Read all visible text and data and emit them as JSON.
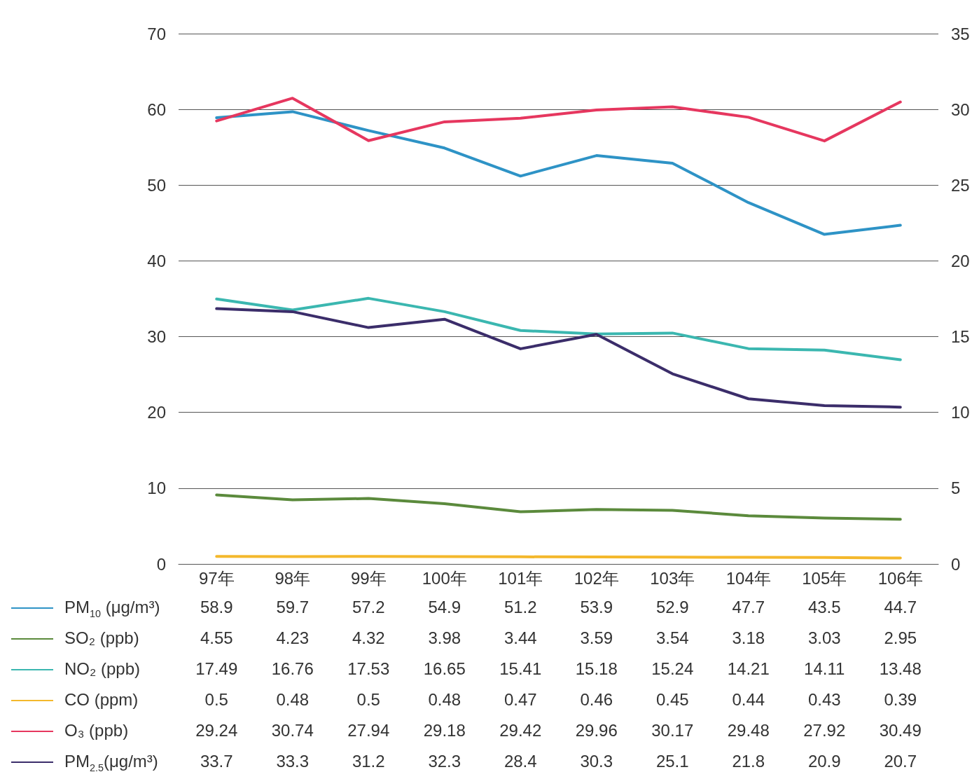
{
  "chart_data": {
    "type": "line",
    "categories": [
      "97年",
      "98年",
      "99年",
      "100年",
      "101年",
      "102年",
      "103年",
      "104年",
      "105年",
      "106年"
    ],
    "series": [
      {
        "name": "PM$_{10}$ (μg/m³)",
        "color": "#2e93c6",
        "values": [
          58.9,
          59.7,
          57.2,
          54.9,
          51.2,
          53.9,
          52.9,
          47.7,
          43.5,
          44.7
        ]
      },
      {
        "name": "SO₂ (ppb)",
        "color": "#5b8a3c",
        "axis": "y2",
        "values": [
          4.55,
          4.23,
          4.32,
          3.98,
          3.44,
          3.59,
          3.54,
          3.18,
          3.03,
          2.95
        ]
      },
      {
        "name": "NO₂ (ppb)",
        "color": "#3bb7b0",
        "axis": "y2",
        "values": [
          17.49,
          16.76,
          17.53,
          16.65,
          15.41,
          15.18,
          15.24,
          14.21,
          14.11,
          13.48
        ]
      },
      {
        "name": "CO (ppm)",
        "color": "#f4b82c",
        "axis": "y2",
        "values": [
          0.5,
          0.48,
          0.5,
          0.48,
          0.47,
          0.46,
          0.45,
          0.44,
          0.43,
          0.39
        ]
      },
      {
        "name": "O₃ (ppb)",
        "color": "#e6375f",
        "axis": "y2",
        "values": [
          29.24,
          30.74,
          27.94,
          29.18,
          29.42,
          29.96,
          30.17,
          29.48,
          27.92,
          30.49
        ]
      },
      {
        "name": "PM$_{2.5}$(μg/m³)",
        "color": "#3b2d6a",
        "values": [
          33.7,
          33.3,
          31.2,
          32.3,
          28.4,
          30.3,
          25.1,
          21.8,
          20.9,
          20.7
        ]
      }
    ],
    "ylim": [
      0,
      70
    ],
    "yticks": [
      0,
      10,
      20,
      30,
      40,
      50,
      60,
      70
    ],
    "y2lim": [
      0,
      35
    ],
    "y2ticks": [
      0,
      5,
      10,
      15,
      20,
      25,
      30,
      35
    ],
    "grid": "y",
    "legend": "bottom",
    "data_labels": true,
    "marker": "none",
    "line_style": "solid"
  }
}
